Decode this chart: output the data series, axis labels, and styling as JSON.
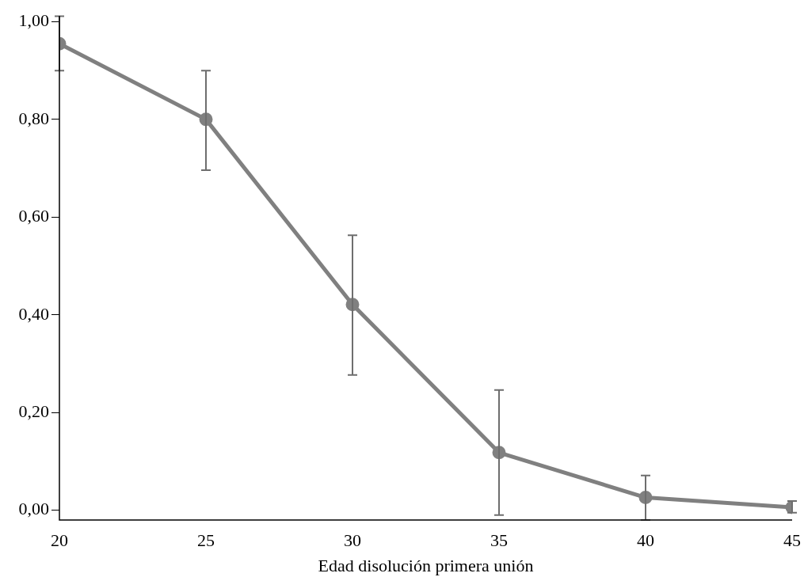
{
  "chart_data": {
    "type": "line",
    "xlabel": "Edad disolución primera unión",
    "x": [
      20,
      25,
      30,
      35,
      40,
      45
    ],
    "series": [
      {
        "color": "#808080",
        "values": [
          0.955,
          0.8,
          0.421,
          0.118,
          0.026,
          0.006
        ],
        "errors": [
          [
            0.9,
            1.011
          ],
          [
            0.696,
            0.9
          ],
          [
            0.277,
            0.563
          ],
          [
            -0.01,
            0.246
          ],
          [
            -0.02,
            0.071
          ],
          [
            -0.005,
            0.019
          ]
        ]
      }
    ],
    "xlim": [
      20,
      45
    ],
    "xticks": [
      20,
      25,
      30,
      35,
      40,
      45
    ],
    "ylim": [
      -0.02,
      1.012
    ],
    "yticks": [
      {
        "value": 0,
        "label": "0,00"
      },
      {
        "value": 0.2,
        "label": "0,20"
      },
      {
        "value": 0.4,
        "label": "0,40"
      },
      {
        "value": 0.6,
        "label": "0,60"
      },
      {
        "value": 0.8,
        "label": "0,80"
      },
      {
        "value": 1,
        "label": "1,00"
      }
    ],
    "marker": "circle",
    "line_style": "solid",
    "grid": false,
    "legend": false
  }
}
